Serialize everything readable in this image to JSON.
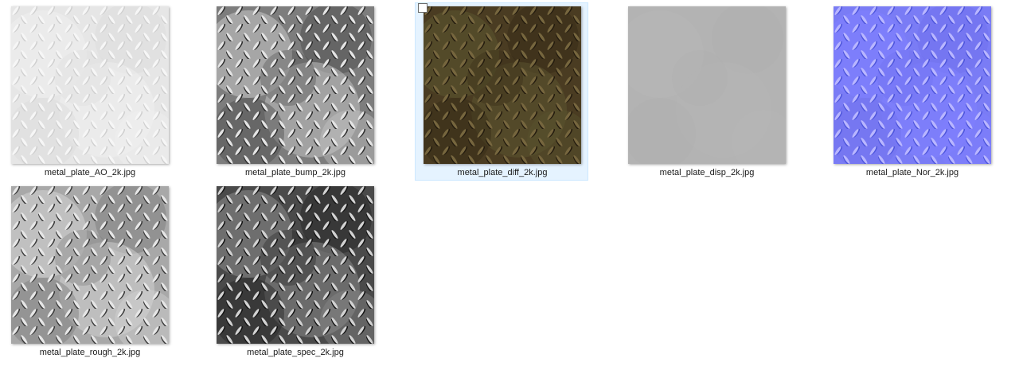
{
  "files": [
    {
      "name": "metal_plate_AO_2k.jpg",
      "base": "#e6e6e6",
      "ridge": "#f6f6f6",
      "shade": "#cfcfcf",
      "cloud": "#efefef",
      "cloud_dark": "#dcdcdc"
    },
    {
      "name": "metal_plate_bump_2k.jpg",
      "base": "#7d7d7d",
      "ridge": "#e4e4e4",
      "shade": "#2c2c2c",
      "cloud": "#c8c8c8",
      "cloud_dark": "#4e4e4e"
    },
    {
      "name": "metal_plate_diff_2k.jpg",
      "base": "#4a3c22",
      "ridge": "#76663e",
      "shade": "#231b0e",
      "cloud": "#5b5530",
      "cloud_dark": "#362a16",
      "selected": true
    },
    {
      "name": "metal_plate_disp_2k.jpg",
      "base": "#b3b3b3",
      "ridge": "#b3b3b3",
      "shade": "#b3b3b3",
      "cloud": "#b6b6b6",
      "cloud_dark": "#b0b0b0"
    },
    {
      "name": "metal_plate_Nor_2k.jpg",
      "base": "#7a7cf5",
      "ridge": "#b9b6ff",
      "shade": "#4c54dc",
      "cloud": "#8080ff",
      "cloud_dark": "#7070ee"
    },
    {
      "name": "metal_plate_rough_2k.jpg",
      "base": "#a8a8a8",
      "ridge": "#e6e6e6",
      "shade": "#3a3a3a",
      "cloud": "#d4d4d4",
      "cloud_dark": "#7c7c7c"
    },
    {
      "name": "metal_plate_spec_2k.jpg",
      "base": "#4a4a4a",
      "ridge": "#d2d2d2",
      "shade": "#121212",
      "cloud": "#8c8c8c",
      "cloud_dark": "#262626"
    }
  ]
}
